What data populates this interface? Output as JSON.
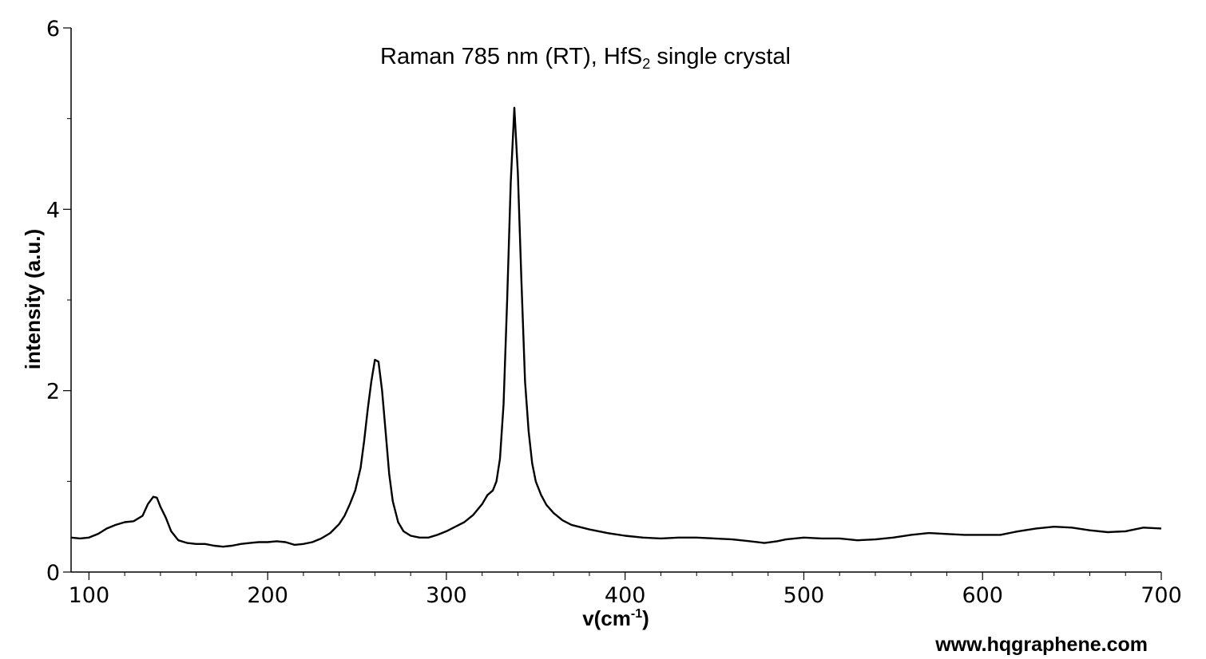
{
  "chart_data": {
    "type": "line",
    "title": {
      "main": "Raman 785 nm (RT), HfS",
      "sub": "2",
      "suffix": " single crystal"
    },
    "xlabel": {
      "main": "v(cm",
      "sup": "-1",
      "suffix": ")"
    },
    "ylabel": "intensity (a.u.)",
    "xlim": [
      90,
      700
    ],
    "ylim": [
      0,
      6
    ],
    "xticks": [
      100,
      200,
      300,
      400,
      500,
      600,
      700
    ],
    "yticks": [
      0,
      2,
      4,
      6
    ],
    "x_minor_step": 20,
    "y_minor_step": 1,
    "grid": false,
    "legend": "none",
    "line_color": "#000000",
    "series": [
      {
        "x": [
          90,
          95,
          100,
          105,
          110,
          115,
          120,
          125,
          130,
          133,
          136,
          138,
          140,
          143,
          146,
          150,
          155,
          160,
          165,
          170,
          175,
          180,
          185,
          190,
          195,
          200,
          205,
          210,
          215,
          220,
          225,
          230,
          235,
          240,
          243,
          246,
          249,
          252,
          254,
          256,
          258,
          260,
          262,
          264,
          266,
          268,
          270,
          273,
          276,
          280,
          285,
          290,
          295,
          300,
          305,
          310,
          315,
          320,
          323,
          326,
          328,
          330,
          332,
          334,
          336,
          338,
          340,
          342,
          344,
          346,
          348,
          350,
          353,
          356,
          360,
          365,
          370,
          380,
          390,
          400,
          410,
          420,
          430,
          440,
          450,
          460,
          470,
          478,
          485,
          490,
          500,
          510,
          520,
          530,
          540,
          550,
          560,
          570,
          580,
          590,
          600,
          610,
          620,
          630,
          640,
          650,
          660,
          670,
          680,
          690,
          700
        ],
        "y": [
          0.38,
          0.37,
          0.38,
          0.42,
          0.48,
          0.52,
          0.55,
          0.56,
          0.62,
          0.75,
          0.83,
          0.82,
          0.72,
          0.6,
          0.45,
          0.35,
          0.32,
          0.31,
          0.31,
          0.29,
          0.28,
          0.29,
          0.31,
          0.32,
          0.33,
          0.33,
          0.34,
          0.33,
          0.3,
          0.31,
          0.33,
          0.37,
          0.43,
          0.53,
          0.62,
          0.75,
          0.9,
          1.15,
          1.45,
          1.8,
          2.1,
          2.34,
          2.32,
          2.0,
          1.55,
          1.08,
          0.78,
          0.55,
          0.45,
          0.4,
          0.38,
          0.38,
          0.41,
          0.45,
          0.5,
          0.55,
          0.63,
          0.75,
          0.85,
          0.9,
          1.0,
          1.25,
          1.85,
          3.0,
          4.3,
          5.12,
          4.4,
          3.2,
          2.1,
          1.55,
          1.2,
          1.0,
          0.85,
          0.74,
          0.65,
          0.57,
          0.52,
          0.47,
          0.43,
          0.4,
          0.38,
          0.37,
          0.38,
          0.38,
          0.37,
          0.36,
          0.34,
          0.32,
          0.34,
          0.36,
          0.38,
          0.37,
          0.37,
          0.35,
          0.36,
          0.38,
          0.41,
          0.43,
          0.42,
          0.41,
          0.41,
          0.41,
          0.45,
          0.48,
          0.5,
          0.49,
          0.46,
          0.44,
          0.45,
          0.49,
          0.48
        ]
      }
    ]
  },
  "watermark": "www.hqgraphene.com"
}
